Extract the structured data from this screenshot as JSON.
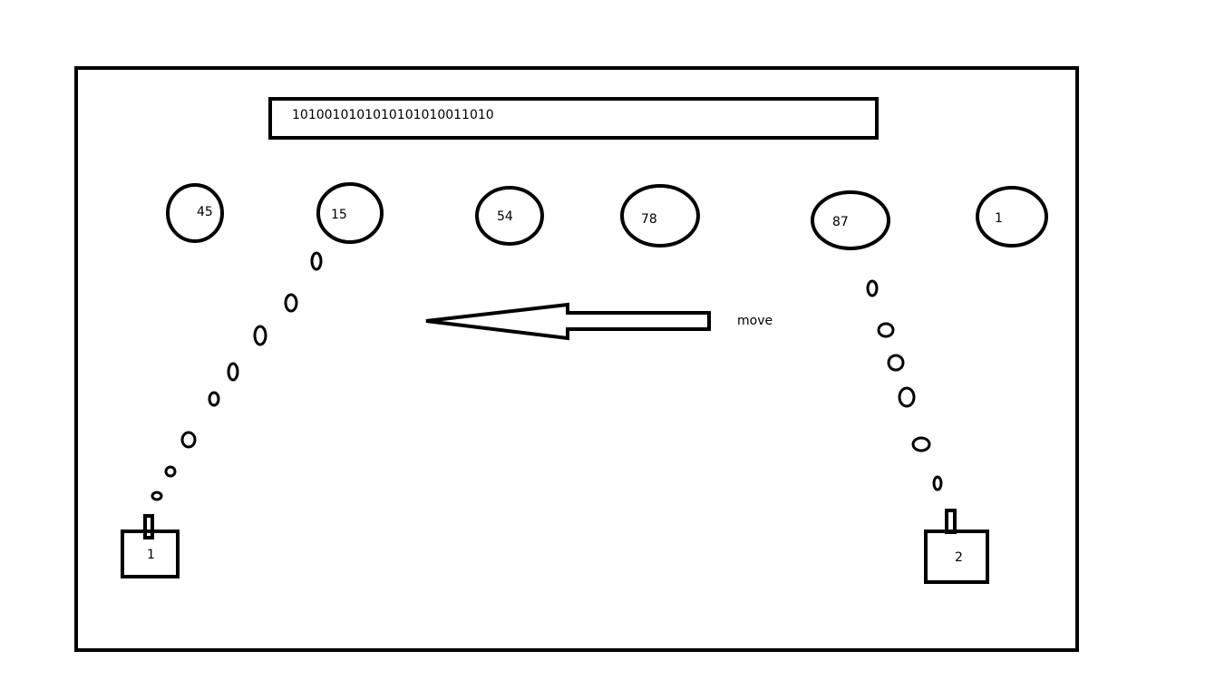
{
  "binary_display": {
    "value": "1010010101010101010011010"
  },
  "targets": [
    {
      "number": "45"
    },
    {
      "number": "15"
    },
    {
      "number": "54"
    },
    {
      "number": "78"
    },
    {
      "number": "87"
    },
    {
      "number": "1"
    }
  ],
  "move_hint": {
    "label": "move",
    "direction": "left",
    "icon": "arrow-left-icon"
  },
  "players": [
    {
      "id": "1"
    },
    {
      "id": "2"
    }
  ]
}
